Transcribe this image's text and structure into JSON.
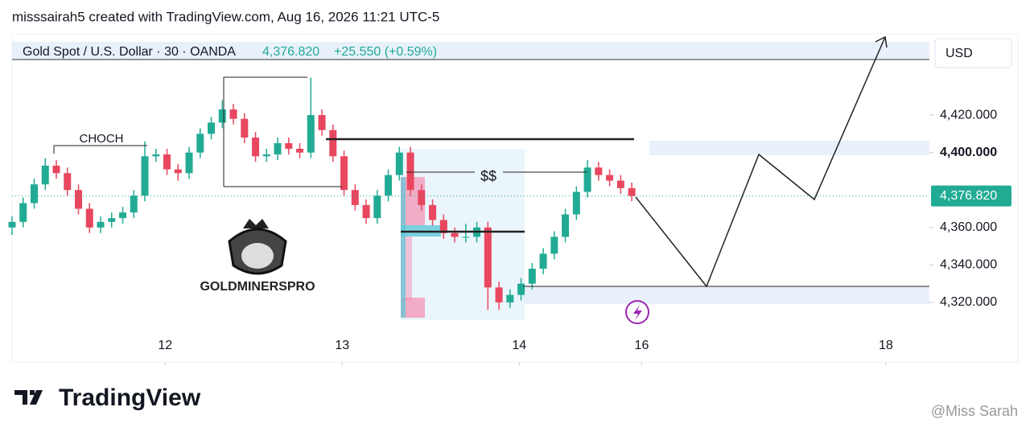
{
  "header": {
    "credit": "misssairah5 created with TradingView.com, Aug 16, 2026 11:21 UTC-5"
  },
  "chart_data": {
    "type": "candlestick",
    "symbol": "Gold Spot / U.S. Dollar · 30 · OANDA",
    "legend_price": "4,376.820",
    "legend_change": "+25.550 (+0.59%)",
    "currency": "USD",
    "last_price": {
      "value": 4376.82,
      "label": "4,376.820"
    },
    "annotations": {
      "choch": "CHOCH",
      "liquidity": "$$",
      "logo": "GOLDMINERSPRO"
    },
    "up_color": "#22ab94",
    "down_color": "#e8475f",
    "x": [
      0,
      3,
      6,
      9,
      12,
      15,
      18,
      21,
      24,
      27,
      30,
      33,
      36,
      39,
      42,
      45,
      48,
      51,
      54,
      57,
      60,
      63,
      66,
      69,
      72,
      75,
      78,
      81,
      84,
      87,
      90,
      93,
      96,
      99,
      102,
      105,
      108,
      111,
      114,
      117,
      120,
      123,
      126,
      129,
      132,
      135,
      138,
      141,
      144,
      147,
      150,
      153,
      156,
      159,
      162,
      165,
      168
    ],
    "open": [
      4360,
      4363,
      4373,
      4383,
      4393,
      4389,
      4380,
      4370,
      4360,
      4363,
      4365,
      4368,
      4377,
      4398,
      4399,
      4391,
      4389,
      4400,
      4410,
      4416,
      4423,
      4418,
      4408,
      4398,
      4399,
      4405,
      4402,
      4400,
      4420,
      4412,
      4398,
      4380,
      4372,
      4365,
      4377,
      4388,
      4400,
      4380,
      4372,
      4364,
      4357,
      4355,
      4355,
      4360,
      4328,
      4320,
      4324,
      4330,
      4338,
      4346,
      4355,
      4367,
      4379,
      4392,
      4388,
      4385,
      4381
    ],
    "high": [
      4366,
      4376,
      4386,
      4397,
      4396,
      4392,
      4383,
      4373,
      4366,
      4368,
      4371,
      4380,
      4406,
      4402,
      4402,
      4394,
      4403,
      4413,
      4419,
      4428,
      4426,
      4421,
      4411,
      4402,
      4408,
      4408,
      4405,
      4440,
      4423,
      4415,
      4401,
      4383,
      4375,
      4380,
      4391,
      4403,
      4403,
      4383,
      4375,
      4367,
      4360,
      4362,
      4363,
      4363,
      4331,
      4327,
      4333,
      4341,
      4349,
      4358,
      4370,
      4382,
      4396,
      4395,
      4391,
      4388,
      4384
    ],
    "low": [
      4356,
      4360,
      4370,
      4380,
      4386,
      4377,
      4367,
      4357,
      4357,
      4360,
      4362,
      4365,
      4374,
      4395,
      4388,
      4385,
      4386,
      4397,
      4407,
      4413,
      4415,
      4405,
      4395,
      4395,
      4396,
      4399,
      4397,
      4397,
      4409,
      4395,
      4377,
      4369,
      4362,
      4362,
      4374,
      4385,
      4377,
      4369,
      4361,
      4354,
      4352,
      4352,
      4352,
      4316,
      4316,
      4317,
      4321,
      4327,
      4335,
      4343,
      4352,
      4364,
      4376,
      4385,
      4382,
      4378,
      4374
    ],
    "close": [
      4363,
      4373,
      4383,
      4393,
      4389,
      4380,
      4370,
      4360,
      4363,
      4365,
      4368,
      4377,
      4398,
      4399,
      4391,
      4389,
      4400,
      4410,
      4416,
      4423,
      4418,
      4408,
      4398,
      4399,
      4405,
      4402,
      4400,
      4420,
      4412,
      4398,
      4380,
      4372,
      4365,
      4377,
      4388,
      4400,
      4380,
      4372,
      4364,
      4357,
      4355,
      4355,
      4360,
      4328,
      4320,
      4324,
      4330,
      4338,
      4346,
      4355,
      4367,
      4379,
      4392,
      4388,
      4385,
      4381,
      4376.82
    ],
    "xlim": [
      0,
      248.7
    ],
    "xticks": [
      {
        "value": 41.5,
        "label": "12"
      },
      {
        "value": 89.5,
        "label": "13"
      },
      {
        "value": 137.5,
        "label": "14"
      },
      {
        "value": 170.7,
        "label": "16"
      },
      {
        "value": 236.9,
        "label": "18"
      }
    ],
    "ylim": [
      4288.2,
      4463.4
    ],
    "yticks": [
      {
        "value": 4320,
        "label": "4,320.000"
      },
      {
        "value": 4340,
        "label": "4,340.000"
      },
      {
        "value": 4360,
        "label": "4,360.000"
      },
      {
        "value": 4400,
        "label": "4,400.000"
      },
      {
        "value": 4420,
        "label": "4,420.000"
      }
    ]
  },
  "footer": {
    "brand": "TradingView",
    "watermark": "@Miss Sarah"
  }
}
